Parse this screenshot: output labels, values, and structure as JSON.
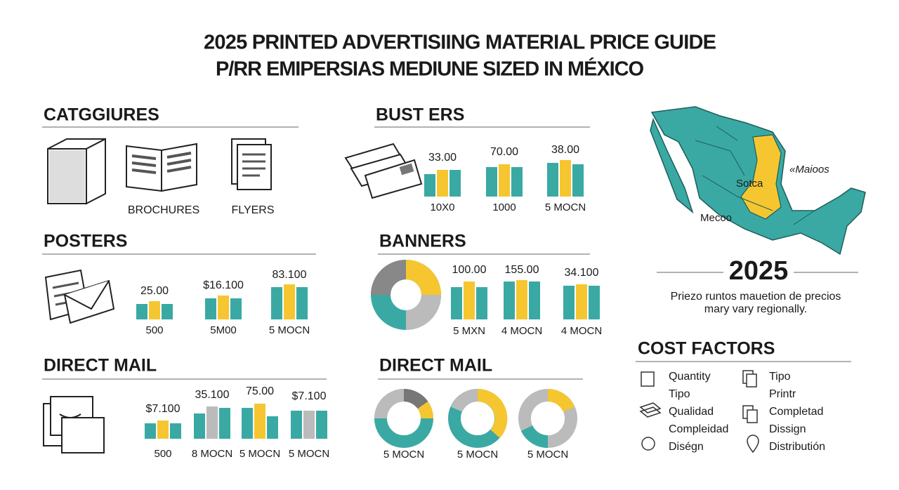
{
  "header": {
    "title": "2025 PRINTED ADVERTISIING MATERIAL PRICE GUIDE",
    "subtitle": "P/RR EMIPERSIAS MEDIUNE SIZED IN MÉXICO"
  },
  "sections": [
    {
      "title": "CATGGIURES",
      "items": [
        "BROCHURES",
        "FLYERS"
      ]
    },
    {
      "title": "BUST ERS",
      "price_labels": [
        "33.00",
        "70.00",
        "38.00"
      ],
      "group_labels": [
        "10X0",
        "1000",
        "5 MOCN"
      ]
    },
    {
      "title": "POSTERS",
      "price_labels": [
        "25.00",
        "$16.100",
        "83.100"
      ],
      "group_labels": [
        "500",
        "5M00",
        "5 MOCN"
      ]
    },
    {
      "title": "BANNERS",
      "price_labels": [
        "100.00",
        "155.00",
        "34.100"
      ],
      "group_labels": [
        "5 MXN",
        "4 MOCN",
        "4 MOCN"
      ]
    },
    {
      "title": "DIRECT MAIL",
      "price_labels": [
        "$7.100",
        "35.100",
        "75.00",
        "$7.100"
      ],
      "group_labels": [
        "500",
        "8 MOCN",
        "5 MOCN",
        "5 MOCN"
      ]
    },
    {
      "title": "DIRECT MAIL",
      "group_labels": [
        "5 MOCN",
        "5 MOCN",
        "5 MOCN"
      ]
    }
  ],
  "map": {
    "labels": [
      "Mecoo",
      "Sotca",
      "«Maioos"
    ],
    "year": "2025",
    "note_lines": [
      "Priezo runtos mauetion de precios",
      "mary vary regionally."
    ]
  },
  "cost_factors": {
    "title": "COST FACTORS",
    "left": [
      "Quantity",
      "Tipo",
      "Qualidad",
      "Compleidad",
      "Diségn"
    ],
    "right": [
      "Tipo",
      "Printr",
      "Completad",
      "Dissign",
      "Distributión"
    ]
  }
}
